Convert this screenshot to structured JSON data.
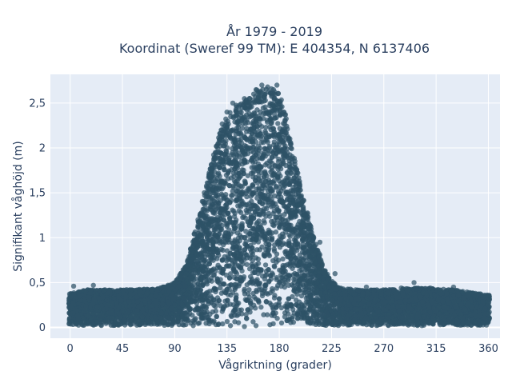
{
  "chart_data": {
    "type": "scatter",
    "title_lines": [
      "År 1979 - 2019",
      "Koordinat (Sweref 99 TM): E 404354, N 6137406"
    ],
    "xlabel": "Vågriktning (grader)",
    "ylabel": "Signifikant våghöjd (m)",
    "xlim": [
      -17,
      370
    ],
    "ylim": [
      -0.12,
      2.82
    ],
    "x_ticks": [
      0,
      45,
      90,
      135,
      180,
      225,
      270,
      315,
      360
    ],
    "x_tick_labels": [
      "0",
      "45",
      "90",
      "135",
      "180",
      "225",
      "270",
      "315",
      "360"
    ],
    "y_ticks": [
      0,
      0.5,
      1,
      1.5,
      2,
      2.5
    ],
    "y_tick_labels": [
      "0",
      "0,5",
      "1",
      "1,5",
      "2",
      "2,5"
    ],
    "grid": true,
    "legend": "none",
    "background_color": "#e5ecf6",
    "marker_color": "#2e5266",
    "series": [
      {
        "x": [
          0,
          45,
          90,
          100,
          110,
          120,
          130,
          135,
          140,
          150,
          160,
          170,
          175,
          180,
          185,
          190,
          200,
          210,
          220,
          225,
          230,
          240,
          250,
          270,
          300,
          315,
          340,
          360,
          3,
          20,
          30,
          60,
          75,
          95,
          105,
          125,
          145,
          155,
          165,
          178,
          195,
          215,
          235,
          255,
          285,
          310,
          330,
          355,
          12,
          52,
          85,
          138,
          150,
          160,
          172,
          182,
          245,
          268,
          305,
          322,
          345,
          8,
          41,
          66,
          115,
          142,
          158,
          176,
          205,
          228,
          262,
          296,
          338
        ],
        "y": [
          0.15,
          0.18,
          0.25,
          0.6,
          1.2,
          1.7,
          2.2,
          2.4,
          2.5,
          2.55,
          2.65,
          2.68,
          2.65,
          2.5,
          2.3,
          2.0,
          1.4,
          0.9,
          0.5,
          0.3,
          0.28,
          0.25,
          0.2,
          0.2,
          0.22,
          0.18,
          0.2,
          0.15,
          0.46,
          0.47,
          0.42,
          0.41,
          0.42,
          0.55,
          0.86,
          1.95,
          2.3,
          2.45,
          2.7,
          2.7,
          1.65,
          0.95,
          0.43,
          0.45,
          0.44,
          0.44,
          0.45,
          0.34,
          0.05,
          0.03,
          0.04,
          0.02,
          0.01,
          0.02,
          0.03,
          0.05,
          0.08,
          0.1,
          0.12,
          0.09,
          0.08,
          0.35,
          0.4,
          0.38,
          0.75,
          2.1,
          2.6,
          2.55,
          1.1,
          0.6,
          0.3,
          0.5,
          0.4
        ]
      }
    ]
  }
}
